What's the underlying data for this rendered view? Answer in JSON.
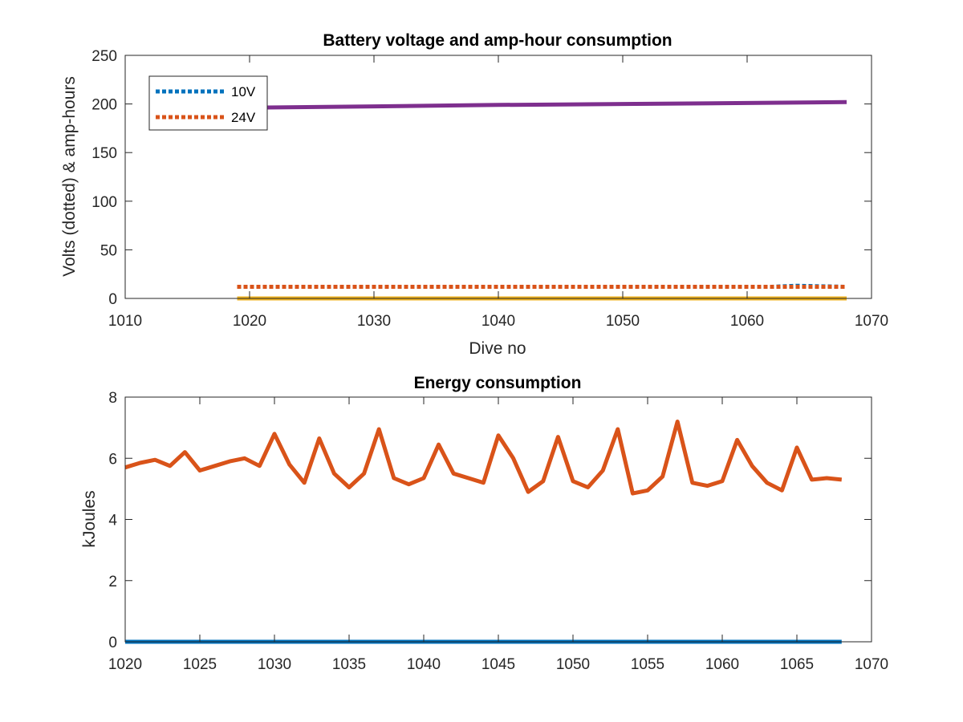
{
  "colors": {
    "blue": "#0072BD",
    "orange": "#D95319",
    "yellow": "#EDB120",
    "purple": "#7E2F8E",
    "axis": "#262626"
  },
  "chart_data": [
    {
      "type": "line",
      "title": "Battery voltage and amp-hour consumption",
      "xlabel": "Dive no",
      "ylabel": "Volts (dotted) & amp-hours",
      "xlim": [
        1010,
        1070
      ],
      "ylim": [
        0,
        250
      ],
      "xticks": [
        1010,
        1020,
        1030,
        1040,
        1050,
        1060,
        1070
      ],
      "yticks": [
        0,
        50,
        100,
        150,
        200,
        250
      ],
      "legend": {
        "location": "top-left",
        "entries": [
          "10V",
          "24V"
        ]
      },
      "series": [
        {
          "name": "10V",
          "style": "dotted",
          "color": "#0072BD",
          "x": [
            1019,
            1050,
            1060,
            1062,
            1064,
            1066,
            1068
          ],
          "y": [
            12,
            12,
            12,
            12,
            13,
            12.5,
            12
          ]
        },
        {
          "name": "24V",
          "style": "dotted",
          "color": "#D95319",
          "x": [
            1019,
            1068
          ],
          "y": [
            12,
            12
          ]
        },
        {
          "style": "solid",
          "color": "#EDB120",
          "x": [
            1019,
            1068
          ],
          "y": [
            0,
            0
          ]
        },
        {
          "style": "solid",
          "color": "#7E2F8E",
          "x": [
            1019,
            1030,
            1040,
            1050,
            1060,
            1068
          ],
          "y": [
            196,
            197.5,
            199,
            200,
            201,
            202
          ]
        }
      ]
    },
    {
      "type": "line",
      "title": "Energy consumption",
      "xlabel": "",
      "ylabel": "kJoules",
      "xlim": [
        1020,
        1070
      ],
      "ylim": [
        0,
        8
      ],
      "xticks": [
        1020,
        1025,
        1030,
        1035,
        1040,
        1045,
        1050,
        1055,
        1060,
        1065,
        1070
      ],
      "yticks": [
        0,
        2,
        4,
        6,
        8
      ],
      "series": [
        {
          "style": "solid",
          "color": "#D95319",
          "x": [
            1020,
            1021,
            1022,
            1023,
            1024,
            1025,
            1026,
            1027,
            1028,
            1029,
            1030,
            1031,
            1032,
            1033,
            1034,
            1035,
            1036,
            1037,
            1038,
            1039,
            1040,
            1041,
            1042,
            1043,
            1044,
            1045,
            1046,
            1047,
            1048,
            1049,
            1050,
            1051,
            1052,
            1053,
            1054,
            1055,
            1056,
            1057,
            1058,
            1059,
            1060,
            1061,
            1062,
            1063,
            1064,
            1065,
            1066,
            1067,
            1068
          ],
          "y": [
            5.7,
            5.85,
            5.95,
            5.75,
            6.2,
            5.6,
            5.75,
            5.9,
            6.0,
            5.75,
            6.8,
            5.8,
            5.2,
            6.65,
            5.5,
            5.05,
            5.5,
            6.95,
            5.35,
            5.15,
            5.35,
            6.45,
            5.5,
            5.35,
            5.2,
            6.75,
            6.0,
            4.9,
            5.25,
            6.7,
            5.25,
            5.05,
            5.6,
            6.95,
            4.85,
            4.95,
            5.4,
            7.2,
            5.2,
            5.1,
            5.25,
            6.6,
            5.75,
            5.2,
            4.95,
            6.35,
            5.3,
            5.35,
            5.3
          ]
        },
        {
          "style": "solid",
          "color": "#0072BD",
          "x": [
            1020,
            1068
          ],
          "y": [
            0,
            0
          ]
        }
      ]
    }
  ]
}
